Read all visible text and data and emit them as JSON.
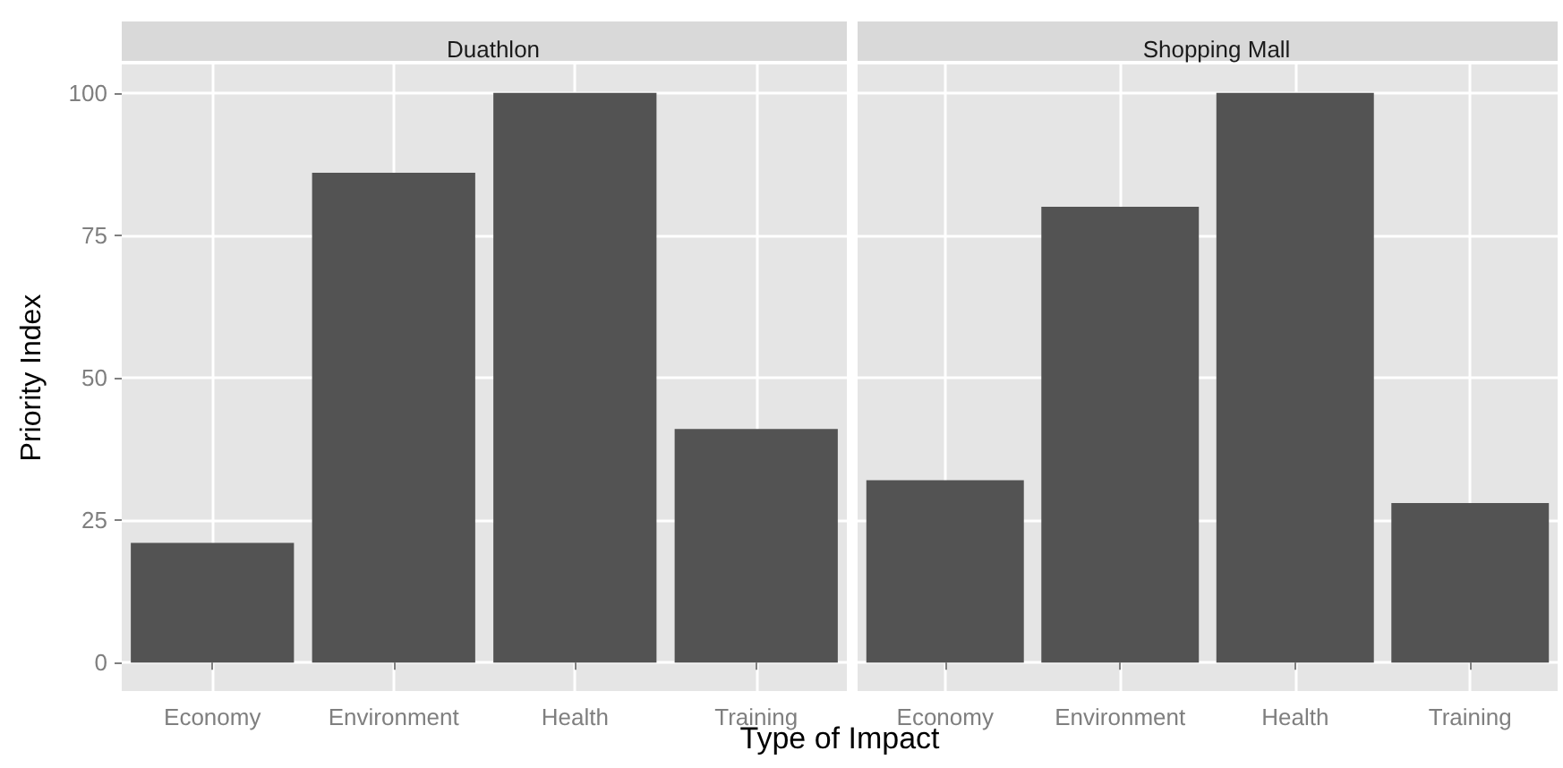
{
  "chart_data": [
    {
      "type": "bar",
      "title": "Duathlon",
      "xlabel": "Type of Impact",
      "ylabel": "Priority Index",
      "categories": [
        "Economy",
        "Environment",
        "Health",
        "Training"
      ],
      "values": [
        21,
        86,
        100,
        41
      ],
      "color": "#535353",
      "ylim": [
        -5,
        105
      ],
      "yticks": [
        0,
        25,
        50,
        75,
        100
      ],
      "grid": true
    },
    {
      "type": "bar",
      "title": "Shopping Mall",
      "categories": [
        "Economy",
        "Environment",
        "Health",
        "Training"
      ],
      "values": [
        32,
        80,
        100,
        28
      ],
      "color": "#535353",
      "ylim": [
        -5,
        105
      ],
      "yticks": [
        0,
        25,
        50,
        75,
        100
      ],
      "grid": true,
      "tick_labels": "x"
    }
  ]
}
